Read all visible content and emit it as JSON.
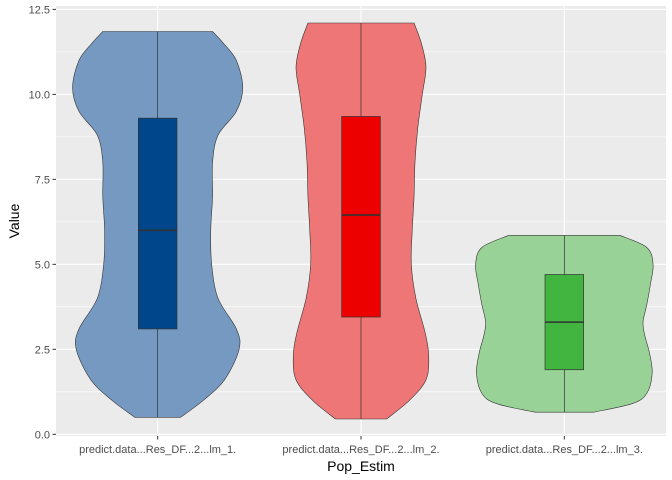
{
  "chart_data": {
    "type": "violin",
    "title": "",
    "xlabel": "Pop_Estim",
    "ylabel": "Value",
    "ylim": [
      -0.05,
      12.6
    ],
    "yticks": [
      0.0,
      2.5,
      5.0,
      7.5,
      10.0,
      12.5
    ],
    "ytick_labels": [
      "0.0",
      "2.5",
      "5.0",
      "7.5",
      "10.0",
      "12.5"
    ],
    "grid": true,
    "categories": [
      "predict.data...Res_DF...2...lm_1.",
      "predict.data...Res_DF...2...lm_2.",
      "predict.data...Res_DF...2...lm_3."
    ],
    "series": [
      {
        "name": "predict.data...Res_DF...2...lm_1.",
        "fill": "#00468b",
        "violin_fill": "#7599c0",
        "min": 0.5,
        "q1": 3.1,
        "median": 6.0,
        "q3": 9.3,
        "max": 11.85,
        "density": [
          [
            0.5,
            0.25
          ],
          [
            1.0,
            0.5
          ],
          [
            1.6,
            0.73
          ],
          [
            2.5,
            0.89
          ],
          [
            3.1,
            0.86
          ],
          [
            4.0,
            0.66
          ],
          [
            5.0,
            0.59
          ],
          [
            6.0,
            0.58
          ],
          [
            7.0,
            0.6
          ],
          [
            8.0,
            0.6
          ],
          [
            8.8,
            0.66
          ],
          [
            9.5,
            0.86
          ],
          [
            10.2,
            0.93
          ],
          [
            11.0,
            0.86
          ],
          [
            11.5,
            0.72
          ],
          [
            11.85,
            0.6
          ]
        ]
      },
      {
        "name": "predict.data...Res_DF...2...lm_2.",
        "fill": "#ed0000",
        "violin_fill": "#ef7676",
        "min": 0.45,
        "q1": 3.45,
        "median": 6.45,
        "q3": 9.35,
        "max": 12.1,
        "density": [
          [
            0.45,
            0.28
          ],
          [
            1.0,
            0.53
          ],
          [
            1.6,
            0.71
          ],
          [
            2.3,
            0.74
          ],
          [
            3.0,
            0.7
          ],
          [
            4.0,
            0.6
          ],
          [
            5.0,
            0.55
          ],
          [
            6.0,
            0.56
          ],
          [
            7.0,
            0.58
          ],
          [
            8.0,
            0.59
          ],
          [
            9.0,
            0.62
          ],
          [
            10.0,
            0.67
          ],
          [
            10.8,
            0.71
          ],
          [
            11.5,
            0.66
          ],
          [
            12.1,
            0.58
          ]
        ]
      },
      {
        "name": "predict.data...Res_DF...2...lm_3.",
        "fill": "#42b540",
        "violin_fill": "#98d296",
        "min": 0.65,
        "q1": 1.9,
        "median": 3.3,
        "q3": 4.7,
        "max": 5.85,
        "density": [
          [
            0.65,
            0.32
          ],
          [
            0.9,
            0.74
          ],
          [
            1.2,
            0.9
          ],
          [
            1.8,
            0.96
          ],
          [
            2.4,
            0.93
          ],
          [
            2.9,
            0.88
          ],
          [
            3.3,
            0.86
          ],
          [
            3.8,
            0.9
          ],
          [
            4.4,
            0.94
          ],
          [
            5.0,
            0.97
          ],
          [
            5.5,
            0.9
          ],
          [
            5.85,
            0.61
          ]
        ]
      }
    ]
  }
}
